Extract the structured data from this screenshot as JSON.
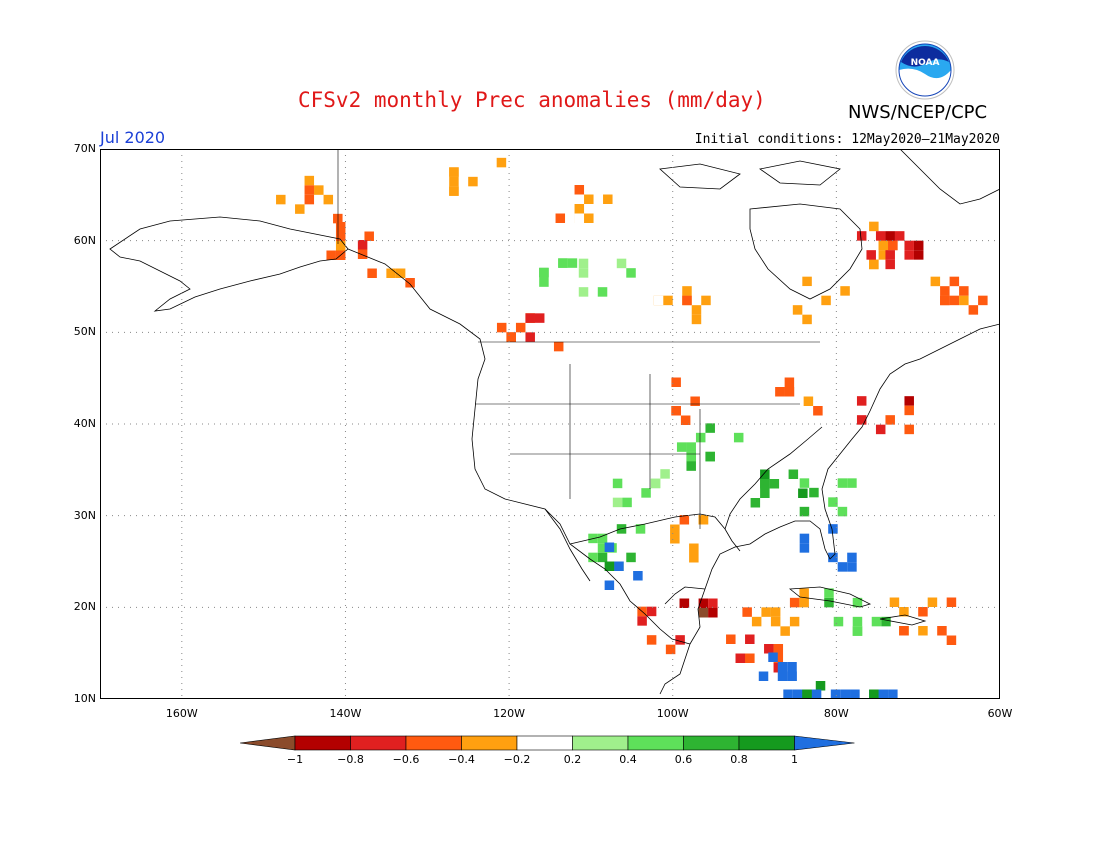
{
  "header": {
    "title": "CFSv2 monthly Prec anomalies (mm/day)",
    "agency": "NWS/NCEP/CPC",
    "logo_text": "NOAA",
    "month": "Jul 2020",
    "initial_conditions": "Initial conditions: 12May2020–21May2020"
  },
  "axes": {
    "lat_labels": [
      "70N",
      "60N",
      "50N",
      "40N",
      "30N",
      "20N",
      "10N"
    ],
    "lat_values": [
      70,
      60,
      50,
      40,
      30,
      20,
      10
    ],
    "lon_labels": [
      "160W",
      "140W",
      "120W",
      "100W",
      "80W",
      "60W"
    ],
    "lon_values": [
      -160,
      -140,
      -120,
      -100,
      -80,
      -60
    ],
    "lon_range": [
      -170,
      -60
    ],
    "lat_range": [
      10,
      70
    ]
  },
  "colorbar": {
    "labels": [
      "−1",
      "−0.8",
      "−0.6",
      "−0.4",
      "−0.2",
      "0.2",
      "0.4",
      "0.6",
      "0.8",
      "1"
    ],
    "colors": [
      "#8b4b2b",
      "#b30000",
      "#e02020",
      "#ff5a10",
      "#ffa010",
      "#ffffff",
      "#a0f08c",
      "#5ee05a",
      "#2eb432",
      "#159a1e",
      "#1f6fe0"
    ]
  },
  "chart_data": {
    "type": "heatmap",
    "title": "CFSv2 monthly Prec anomalies (mm/day)",
    "valid_month": "Jul 2020",
    "units": "mm/day",
    "scale": [
      -1,
      -0.8,
      -0.6,
      -0.4,
      -0.2,
      0.2,
      0.4,
      0.6,
      0.8,
      1
    ],
    "regions": [
      {
        "lon": -145,
        "lat": 65,
        "value": -0.3
      },
      {
        "lon": -125,
        "lat": 68,
        "value": -0.3
      },
      {
        "lon": -112,
        "lat": 64,
        "value": -0.3
      },
      {
        "lon": -140,
        "lat": 61,
        "value": -0.4
      },
      {
        "lon": -135,
        "lat": 58,
        "value": -0.5
      },
      {
        "lon": -114,
        "lat": 56,
        "value": 0.6
      },
      {
        "lon": -108,
        "lat": 57,
        "value": 0.4
      },
      {
        "lon": -76,
        "lat": 60,
        "value": -0.4
      },
      {
        "lon": -74,
        "lat": 60,
        "value": -0.7
      },
      {
        "lon": -65,
        "lat": 54,
        "value": -0.4
      },
      {
        "lon": -83,
        "lat": 54,
        "value": -0.3
      },
      {
        "lon": -100,
        "lat": 54,
        "value": -0.3
      },
      {
        "lon": -118,
        "lat": 50,
        "value": -0.5
      },
      {
        "lon": -74,
        "lat": 42,
        "value": -0.7
      },
      {
        "lon": -84,
        "lat": 43,
        "value": -0.4
      },
      {
        "lon": -99,
        "lat": 43,
        "value": -0.5
      },
      {
        "lon": -96,
        "lat": 38,
        "value": 0.6
      },
      {
        "lon": -87,
        "lat": 34,
        "value": 0.7
      },
      {
        "lon": -81,
        "lat": 32,
        "value": 0.6
      },
      {
        "lon": -81,
        "lat": 27,
        "value": 1.1
      },
      {
        "lon": -105,
        "lat": 33,
        "value": 0.4
      },
      {
        "lon": -108,
        "lat": 27,
        "value": 0.6
      },
      {
        "lon": -106,
        "lat": 25,
        "value": 1.1
      },
      {
        "lon": -98,
        "lat": 22,
        "value": -0.9
      },
      {
        "lon": -102,
        "lat": 18,
        "value": -0.7
      },
      {
        "lon": -98,
        "lat": 28,
        "value": -0.3
      },
      {
        "lon": -88,
        "lat": 20,
        "value": -0.3
      },
      {
        "lon": -90,
        "lat": 16,
        "value": -0.6
      },
      {
        "lon": -86,
        "lat": 13,
        "value": 1.1
      },
      {
        "lon": -83,
        "lat": 10,
        "value": 1.1
      },
      {
        "lon": -76,
        "lat": 10,
        "value": 1.1
      },
      {
        "lon": -70,
        "lat": 19,
        "value": -0.4
      },
      {
        "lon": -78,
        "lat": 20,
        "value": 0.5
      }
    ]
  }
}
